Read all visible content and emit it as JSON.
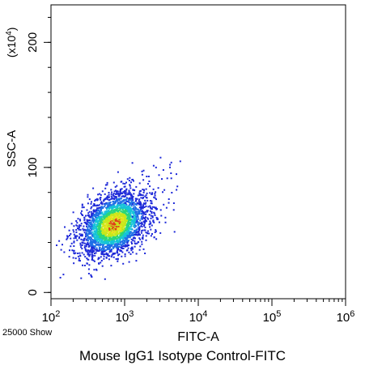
{
  "chart_data": {
    "type": "scatter",
    "style": "density-dot-plot",
    "xlabel": "FITC-A",
    "ylabel": "SSC-A",
    "y_multiplier_label": "(x10",
    "y_multiplier_exp": "4",
    "y_multiplier_close": ")",
    "x_scale": "log",
    "xlim": [
      100,
      1000000
    ],
    "x_ticks": [
      {
        "base": "10",
        "exp": "2",
        "value": 100
      },
      {
        "base": "10",
        "exp": "3",
        "value": 1000
      },
      {
        "base": "10",
        "exp": "4",
        "value": 10000
      },
      {
        "base": "10",
        "exp": "5",
        "value": 100000
      },
      {
        "base": "10",
        "exp": "6",
        "value": 1000000
      }
    ],
    "y_scale": "linear",
    "ylim": [
      -5,
      230
    ],
    "y_ticks": [
      {
        "label": "0",
        "value": 0
      },
      {
        "label": "100",
        "value": 100
      },
      {
        "label": "200",
        "value": 200
      }
    ],
    "event_count_label": "25000 Show",
    "population": {
      "center_x": 700,
      "center_y": 55,
      "spread_log_x": 0.22,
      "spread_y": 13,
      "y_upper_cutoff": 112,
      "colors_low_to_high": [
        "#1d28d8",
        "#1f6fe6",
        "#16c4d8",
        "#2ad67a",
        "#c6e81c",
        "#f0e020",
        "#e03a1a"
      ]
    },
    "caption": "Mouse IgG1 Isotype Control-FITC"
  }
}
